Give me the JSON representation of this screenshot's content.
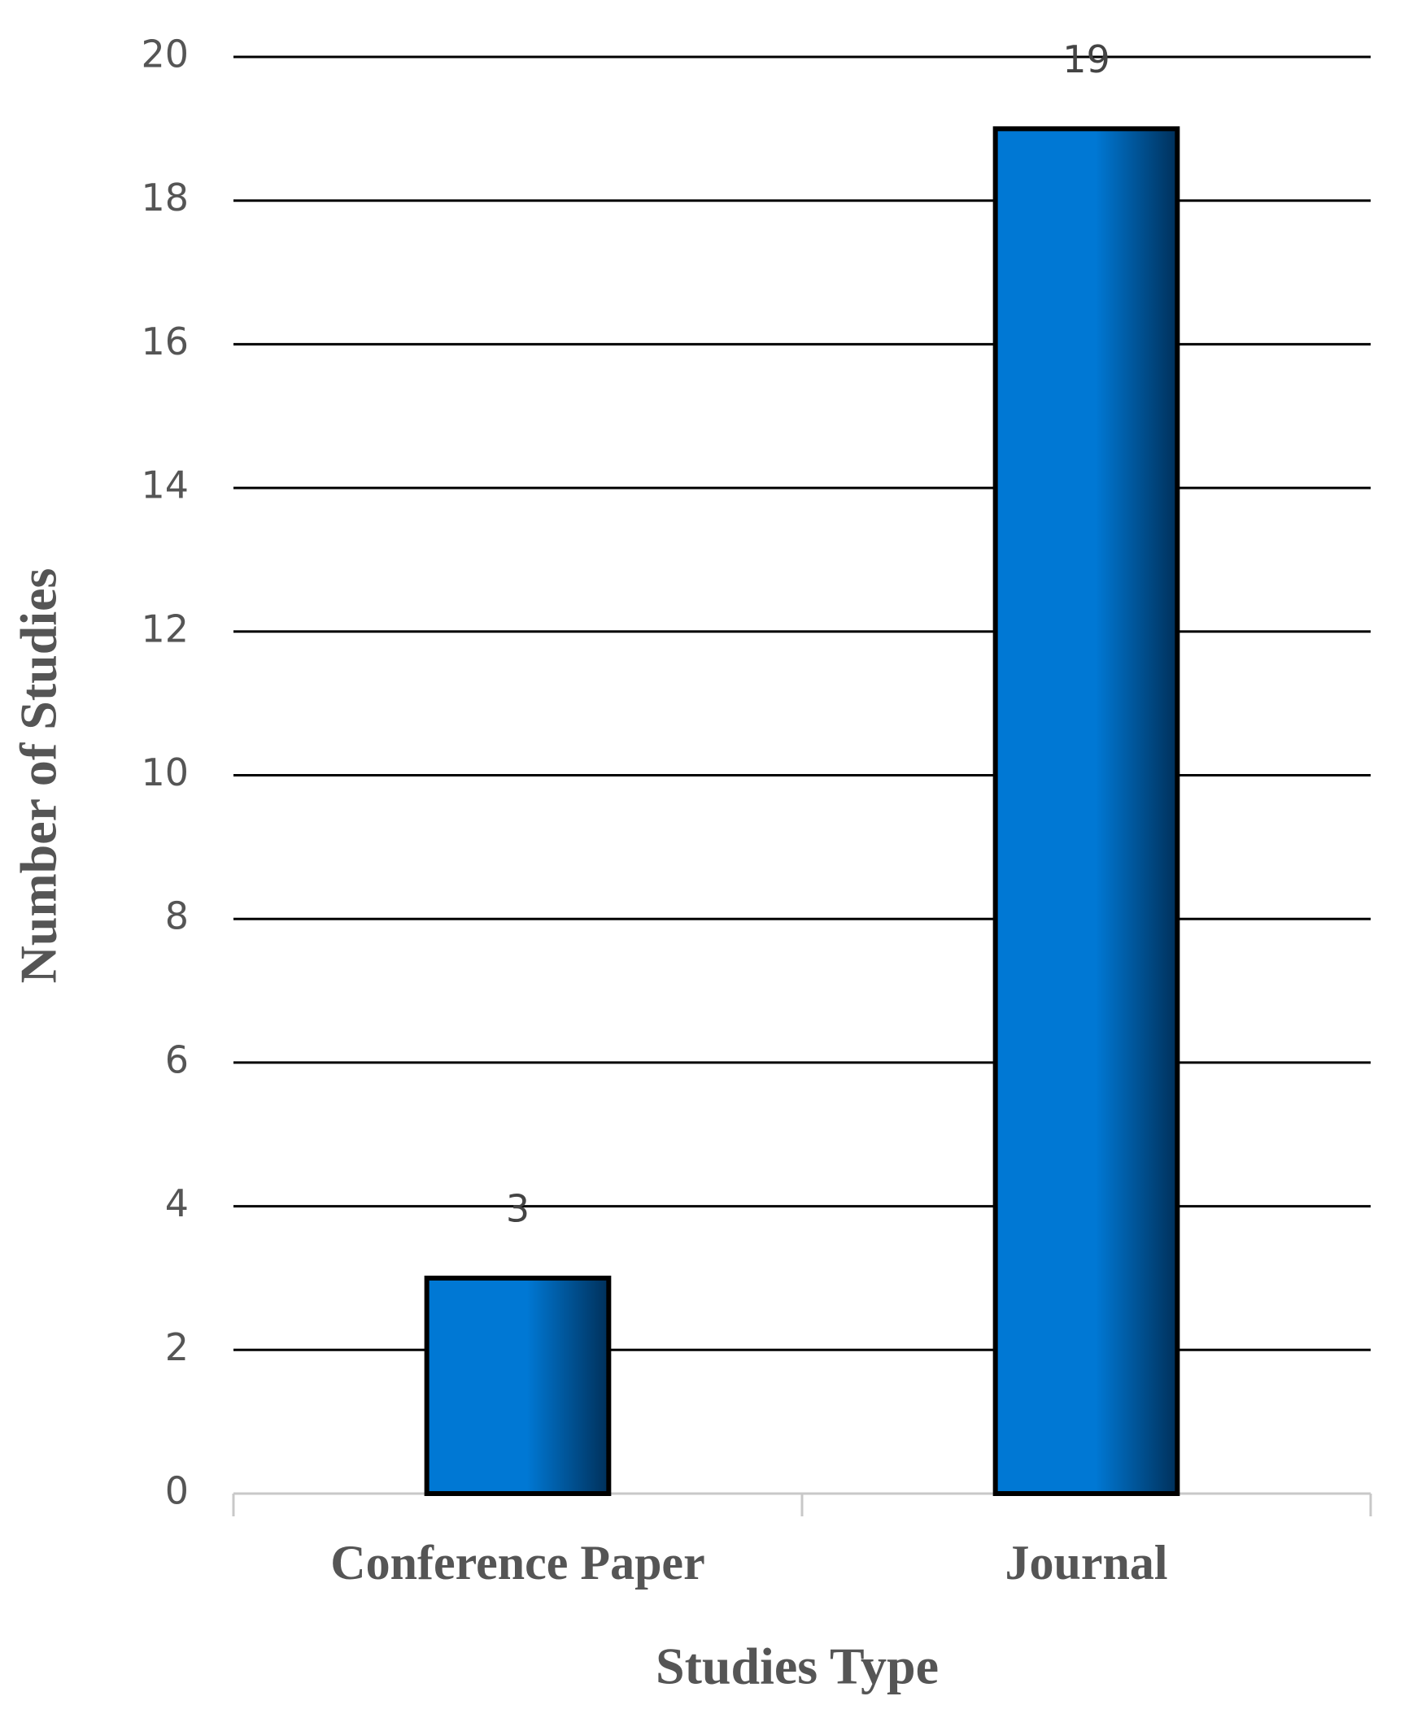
{
  "chart_data": {
    "type": "bar",
    "categories": [
      "Conference Paper",
      "Journal"
    ],
    "values": [
      3,
      19
    ],
    "color": "#0078d4",
    "xlabel": "Studies Type",
    "ylabel": "Number of Studies",
    "ylim": [
      0,
      20
    ],
    "yticks": [
      0,
      2,
      4,
      6,
      8,
      10,
      12,
      14,
      16,
      18,
      20
    ],
    "grid": true
  }
}
